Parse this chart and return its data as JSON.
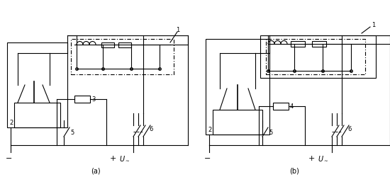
{
  "label_a": "(a)",
  "label_b": "(b)",
  "fig_width": 5.5,
  "fig_height": 2.5,
  "dpi": 100,
  "lw": 0.8,
  "color": "#000000",
  "bg": "#ffffff"
}
